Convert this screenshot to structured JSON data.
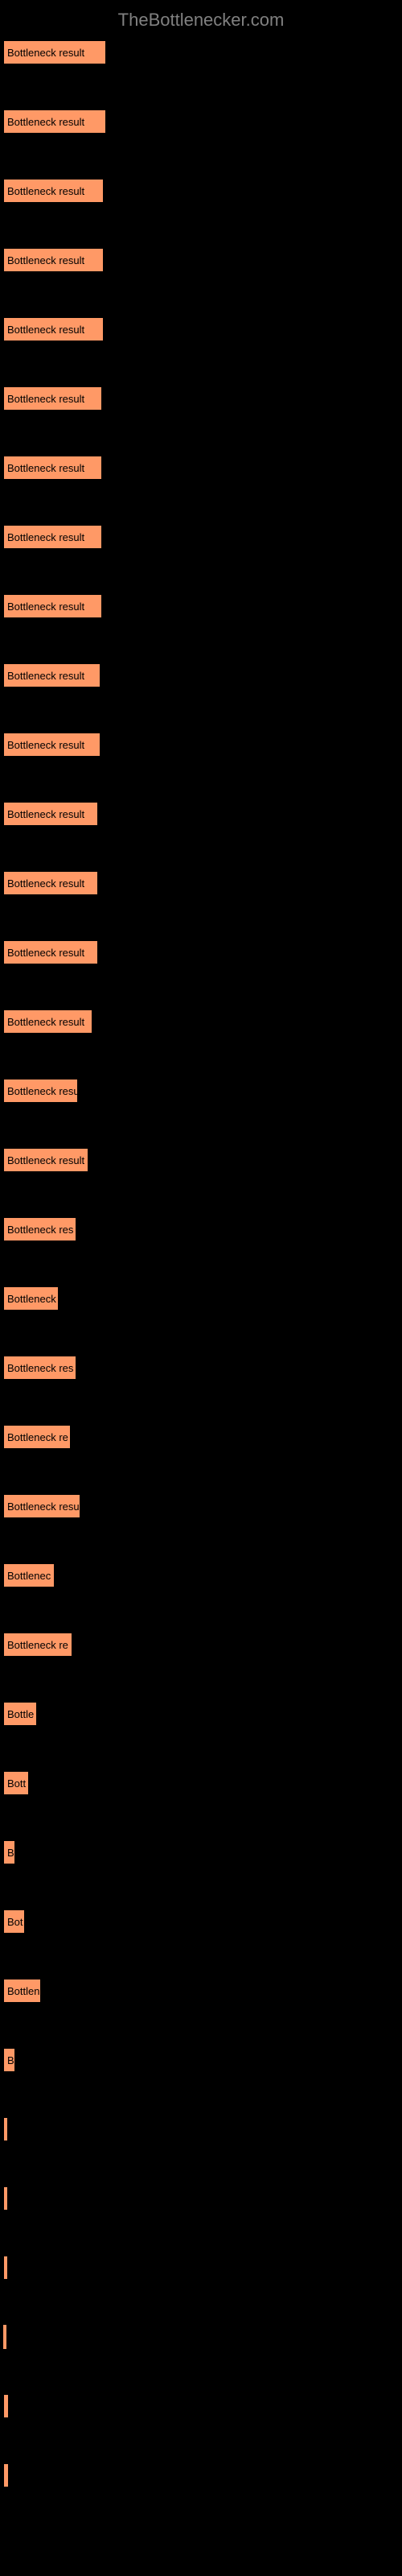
{
  "header": {
    "title": "TheBottlenecker.com"
  },
  "chart": {
    "type": "bar",
    "background_color": "#000000",
    "bar_color": "#ff9966",
    "bar_border_color": "#000000",
    "label_color": "#000000",
    "label_fontsize": 13,
    "max_width_percent": 26,
    "bars": [
      {
        "label": "Bottleneck result",
        "width_percent": 26.0
      },
      {
        "label": "Bottleneck result",
        "width_percent": 26.0
      },
      {
        "label": "Bottleneck result",
        "width_percent": 25.5
      },
      {
        "label": "Bottleneck result",
        "width_percent": 25.5
      },
      {
        "label": "Bottleneck result",
        "width_percent": 25.5
      },
      {
        "label": "Bottleneck result",
        "width_percent": 25.0
      },
      {
        "label": "Bottleneck result",
        "width_percent": 25.0
      },
      {
        "label": "Bottleneck result",
        "width_percent": 25.0
      },
      {
        "label": "Bottleneck result",
        "width_percent": 25.0
      },
      {
        "label": "Bottleneck result",
        "width_percent": 24.5
      },
      {
        "label": "Bottleneck result",
        "width_percent": 24.5
      },
      {
        "label": "Bottleneck result",
        "width_percent": 24.0
      },
      {
        "label": "Bottleneck result",
        "width_percent": 24.0
      },
      {
        "label": "Bottleneck result",
        "width_percent": 24.0
      },
      {
        "label": "Bottleneck result",
        "width_percent": 22.5
      },
      {
        "label": "Bottleneck resu",
        "width_percent": 19.0
      },
      {
        "label": "Bottleneck result",
        "width_percent": 21.5
      },
      {
        "label": "Bottleneck res",
        "width_percent": 18.5
      },
      {
        "label": "Bottleneck",
        "width_percent": 14.0
      },
      {
        "label": "Bottleneck res",
        "width_percent": 18.5
      },
      {
        "label": "Bottleneck re",
        "width_percent": 17.0
      },
      {
        "label": "Bottleneck resu",
        "width_percent": 19.5
      },
      {
        "label": "Bottlenec",
        "width_percent": 13.0
      },
      {
        "label": "Bottleneck re",
        "width_percent": 17.5
      },
      {
        "label": "Bottle",
        "width_percent": 8.5
      },
      {
        "label": "Bott",
        "width_percent": 6.5
      },
      {
        "label": "B",
        "width_percent": 3.0
      },
      {
        "label": "Bot",
        "width_percent": 5.5
      },
      {
        "label": "Bottlen",
        "width_percent": 9.5
      },
      {
        "label": "B",
        "width_percent": 3.0
      },
      {
        "label": "",
        "width_percent": 1.0
      },
      {
        "label": "",
        "width_percent": 1.0
      },
      {
        "label": "",
        "width_percent": 0.5
      },
      {
        "label": "",
        "width_percent": 0.0
      },
      {
        "label": "",
        "width_percent": 1.5
      },
      {
        "label": "",
        "width_percent": 1.5
      }
    ]
  }
}
